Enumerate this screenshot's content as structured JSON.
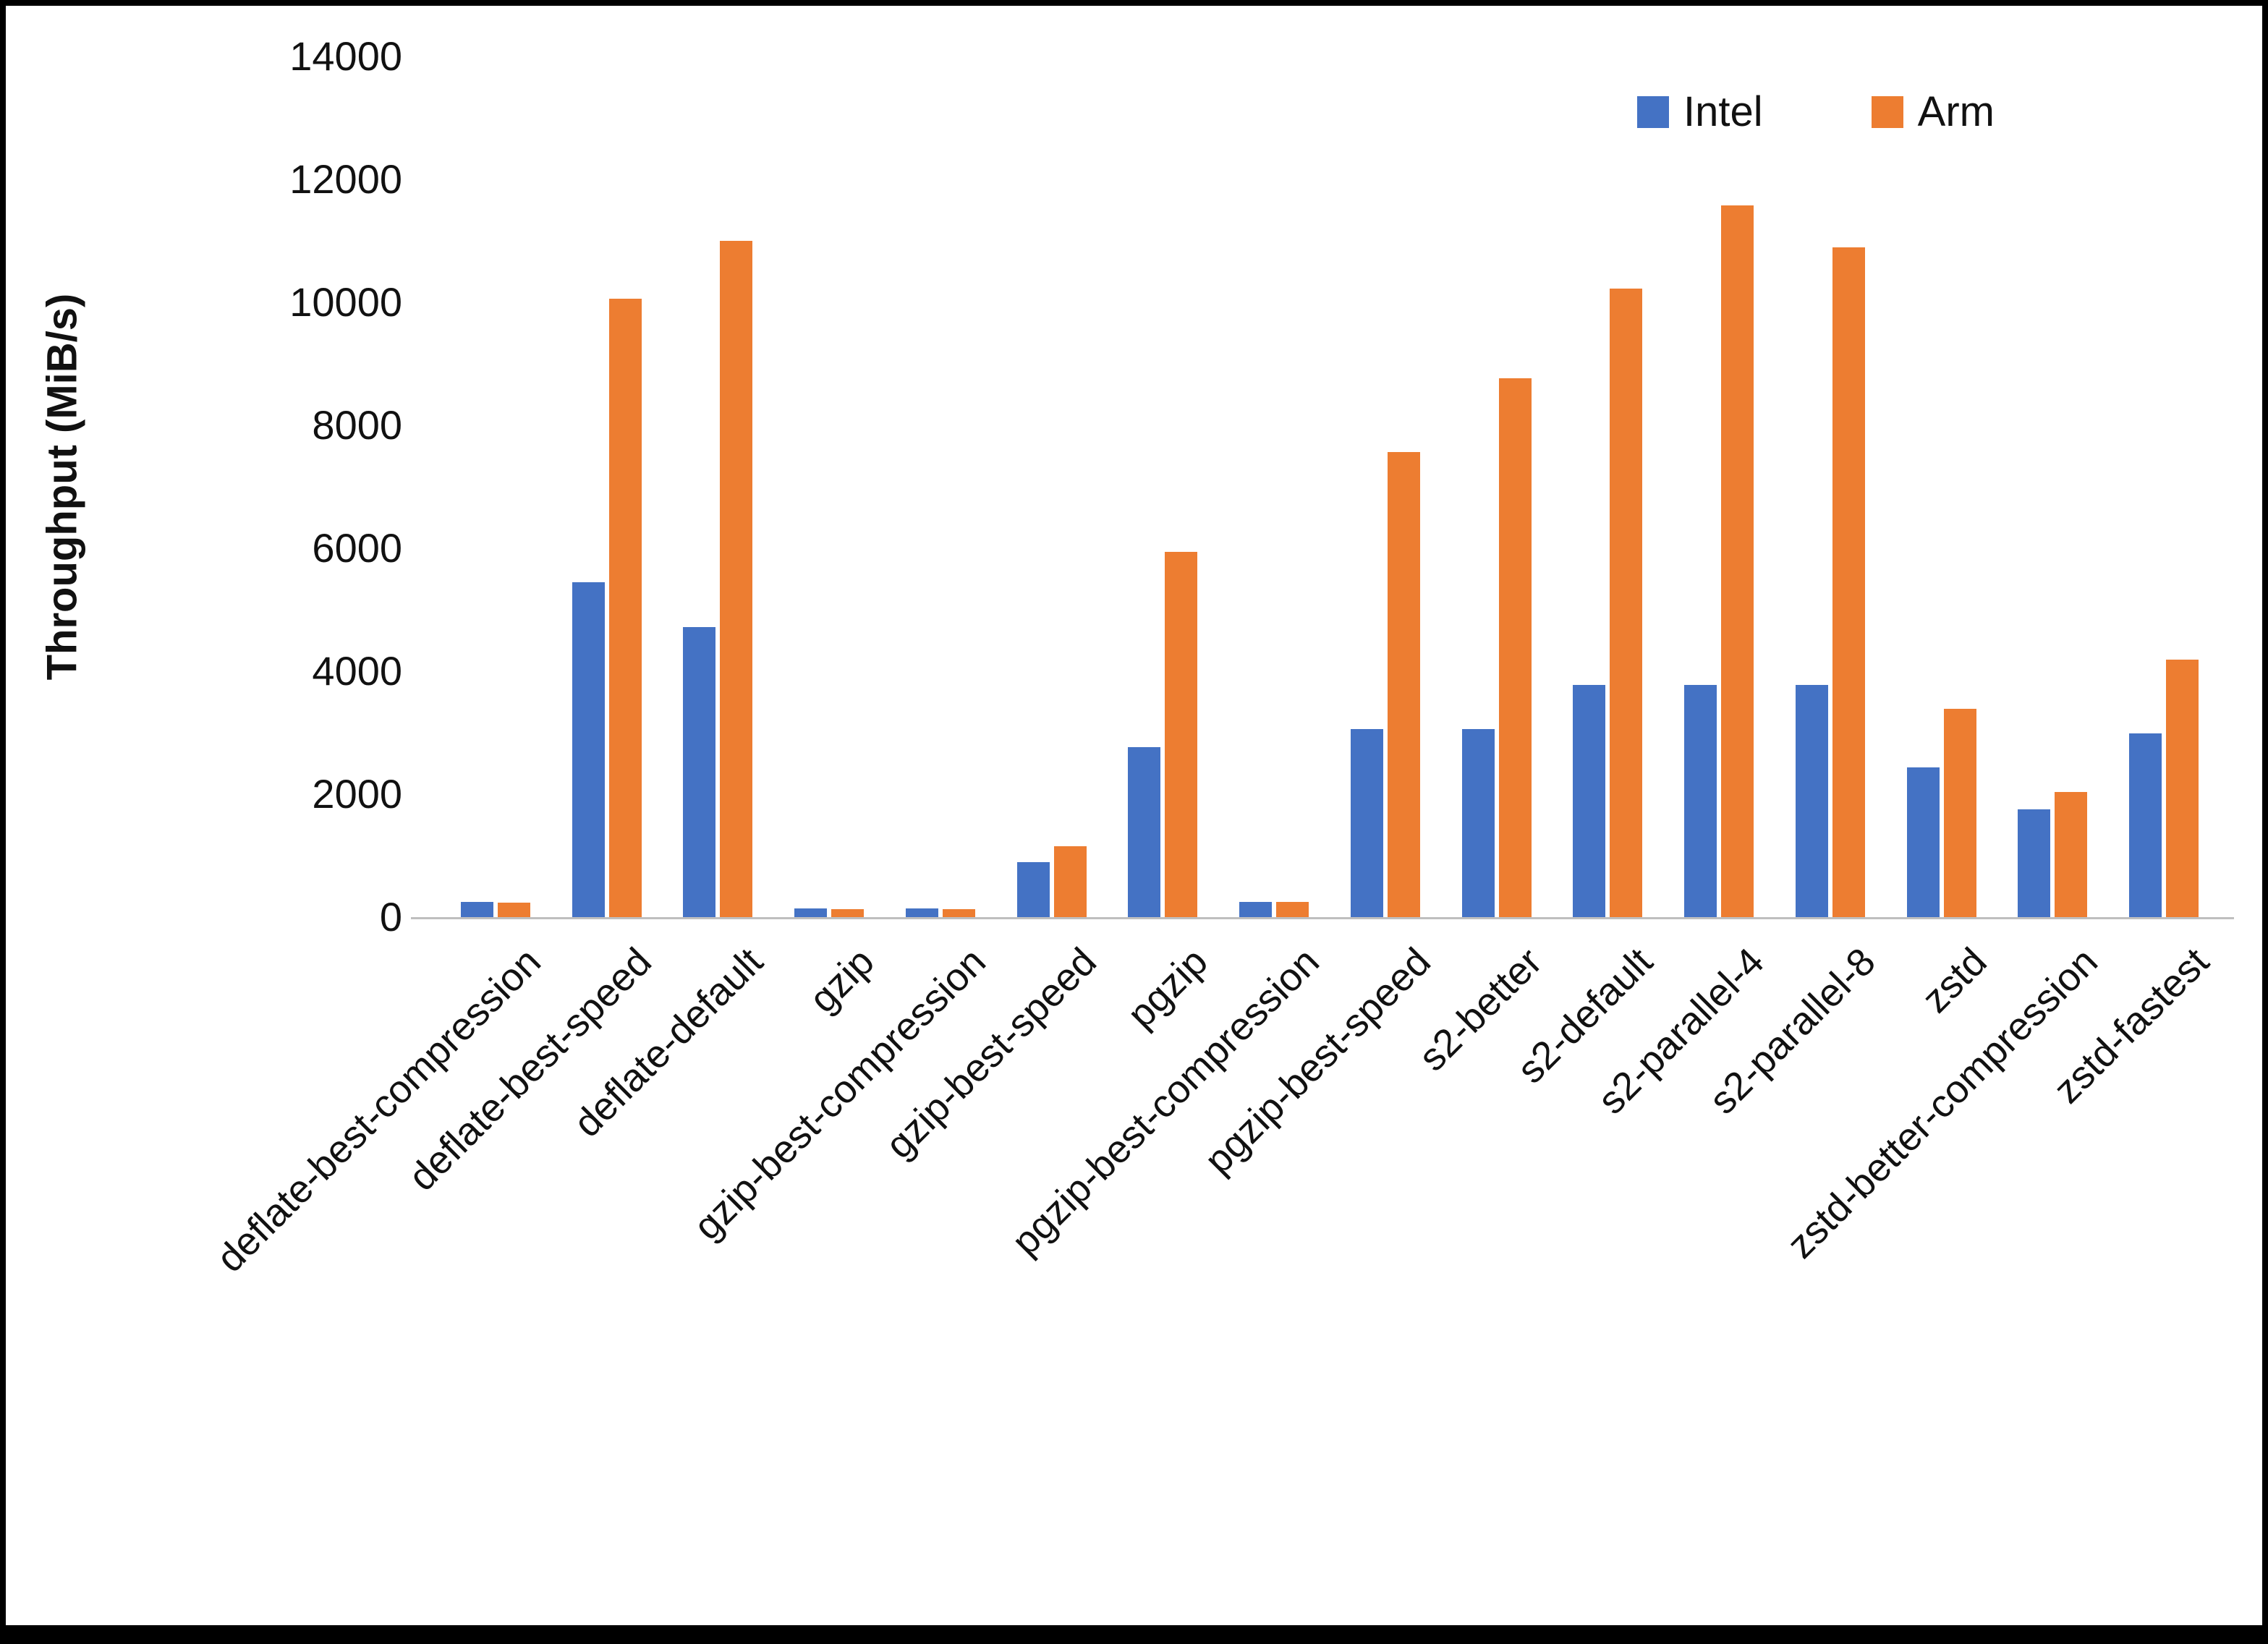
{
  "chart_data": {
    "type": "bar",
    "title": "",
    "xlabel": "",
    "ylabel": "Throughput (MiB/s)",
    "ylim": [
      0,
      14000
    ],
    "yticks": [
      0,
      2000,
      4000,
      6000,
      8000,
      10000,
      12000,
      14000
    ],
    "grid": false,
    "legend_position": "top-right",
    "axis_line_color": "#bfbfbf",
    "categories": [
      "deflate-best-compression",
      "deflate-best-speed",
      "deflate-default",
      "gzip",
      "gzip-best-compression",
      "gzip-best-speed",
      "pgzip",
      "pgzip-best-compression",
      "pgzip-best-speed",
      "s2-better",
      "s2-default",
      "s2-parallel-4",
      "s2-parallel-8",
      "zstd",
      "zstd-better-compression",
      "zstd-fastest"
    ],
    "series": [
      {
        "name": "Intel",
        "color": "#4472C4",
        "values": [
          250,
          5450,
          4720,
          140,
          140,
          900,
          2760,
          250,
          3060,
          3060,
          3780,
          3780,
          3780,
          2440,
          1750,
          2990
        ]
      },
      {
        "name": "Arm",
        "color": "#ED7D31",
        "values": [
          240,
          10060,
          11000,
          130,
          130,
          1150,
          5940,
          250,
          7570,
          8770,
          10220,
          11580,
          10890,
          3390,
          2040,
          4190
        ]
      }
    ]
  }
}
